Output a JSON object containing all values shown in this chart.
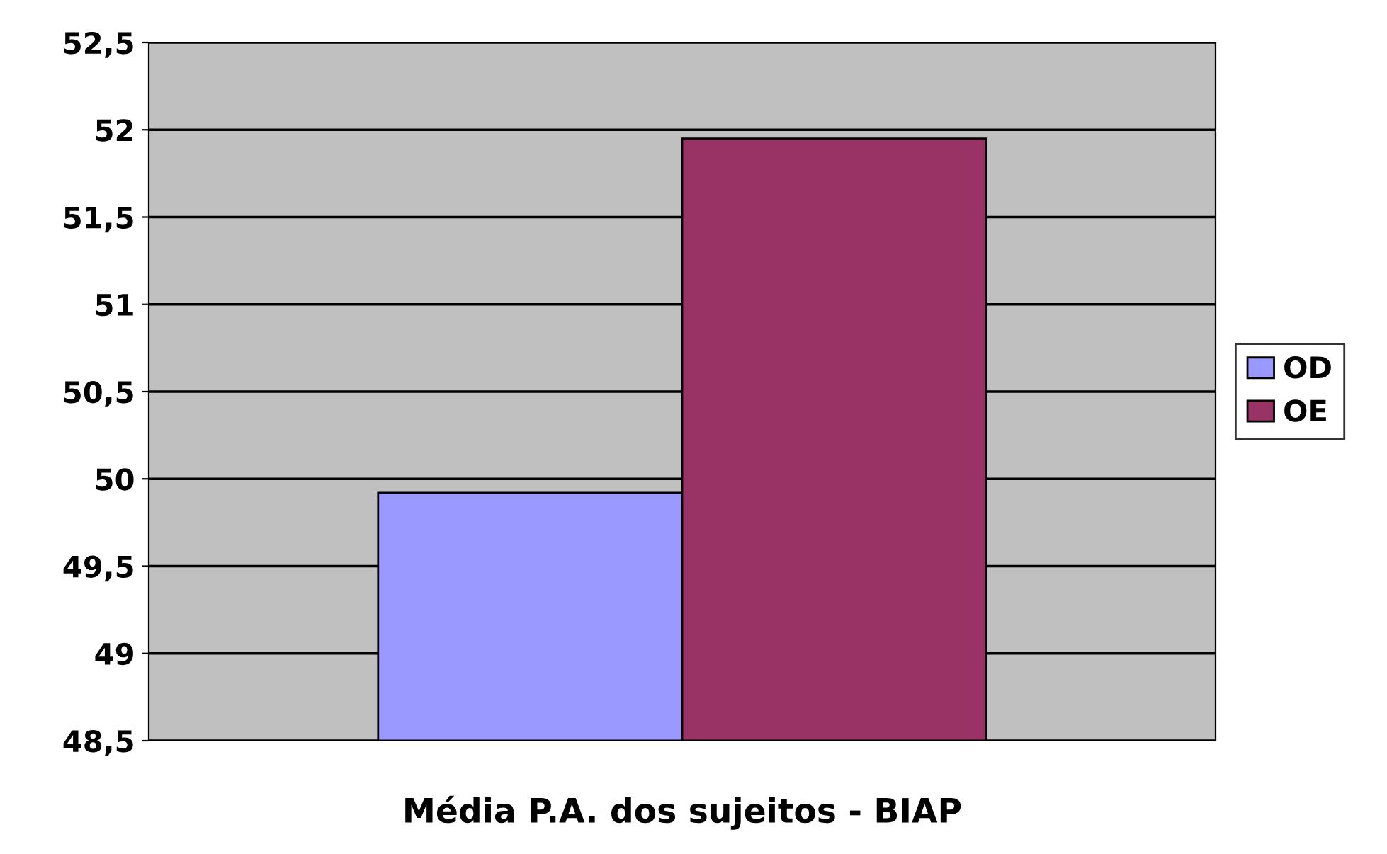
{
  "chart_data": {
    "type": "bar",
    "categories": [
      "Média P.A. dos sujeitos - BIAP"
    ],
    "series": [
      {
        "name": "OD",
        "color": "#9999ff",
        "values": [
          49.92
        ]
      },
      {
        "name": "OE",
        "color": "#993366",
        "values": [
          51.95
        ]
      }
    ],
    "ylim": [
      48.5,
      52.5
    ],
    "yticks": [
      {
        "value": 48.5,
        "label": "48,5"
      },
      49,
      {
        "value": 49.5,
        "label": "49,5"
      },
      50,
      {
        "value": 50.5,
        "label": "50,5"
      },
      51,
      {
        "value": 51.5,
        "label": "51,5"
      },
      52,
      {
        "value": 52.5,
        "label": "52,5"
      }
    ],
    "grid": "y",
    "legend": "right"
  }
}
